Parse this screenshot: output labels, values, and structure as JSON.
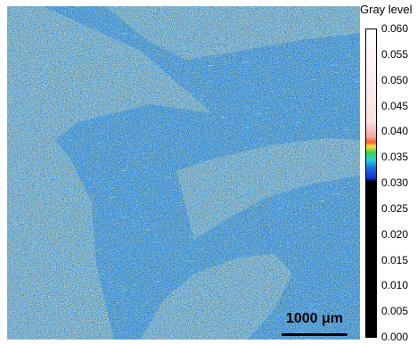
{
  "image": {
    "description_colors": {
      "background_blue": "#1e6fe6",
      "noise_colors": [
        "#ffffff",
        "#ffe23a",
        "#3fd44b",
        "#1bd3e0",
        "#ff5a2a",
        "#000000"
      ]
    },
    "grains": 6
  },
  "scale_bar": {
    "label": "1000 μm"
  },
  "legend": {
    "title": "Gray level",
    "ticks": [
      "0.060",
      "0.055",
      "0.050",
      "0.045",
      "0.040",
      "0.035",
      "0.030",
      "0.025",
      "0.020",
      "0.015",
      "0.010",
      "0.005",
      "0.000"
    ],
    "min": 0.0,
    "max": 0.06,
    "color_stops": [
      {
        "value": 0.0,
        "color": "#000000"
      },
      {
        "value": 0.0303,
        "color": "#000000"
      },
      {
        "value": 0.031,
        "color": "#1032d8"
      },
      {
        "value": 0.033,
        "color": "#1e6fe6"
      },
      {
        "value": 0.0345,
        "color": "#1bd3e0"
      },
      {
        "value": 0.036,
        "color": "#3fd44b"
      },
      {
        "value": 0.0372,
        "color": "#ffe23a"
      },
      {
        "value": 0.038,
        "color": "#ff5a2a"
      },
      {
        "value": 0.039,
        "color": "#f5a3a3"
      },
      {
        "value": 0.042,
        "color": "#fbe0e0"
      },
      {
        "value": 0.06,
        "color": "#ffffff"
      }
    ]
  }
}
